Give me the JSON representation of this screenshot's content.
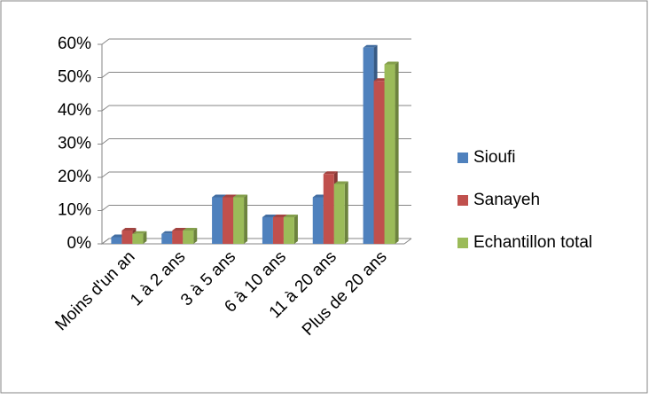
{
  "chart_data": {
    "type": "bar",
    "categories": [
      "Moins d'un an",
      "1 à 2 ans",
      "3 à 5 ans",
      "6 à 10 ans",
      "11 à 20 ans",
      "Plus de 20 ans"
    ],
    "series": [
      {
        "name": "Sioufi",
        "color": "#4f81bd",
        "values": [
          2,
          3,
          14,
          8,
          14,
          59
        ]
      },
      {
        "name": "Sanayeh",
        "color": "#c0504d",
        "values": [
          4,
          4,
          14,
          8,
          21,
          49
        ]
      },
      {
        "name": "Echantillon total",
        "color": "#9bbb59",
        "values": [
          3,
          4,
          14,
          8,
          18,
          54
        ]
      }
    ],
    "ylim": [
      0,
      60
    ],
    "yticks": [
      {
        "value": 0,
        "label": "0%"
      },
      {
        "value": 10,
        "label": "10%"
      },
      {
        "value": 20,
        "label": "20%"
      },
      {
        "value": 30,
        "label": "30%"
      },
      {
        "value": 40,
        "label": "40%"
      },
      {
        "value": 50,
        "label": "50%"
      },
      {
        "value": 60,
        "label": "60%"
      }
    ],
    "grid": true,
    "legend": "right"
  }
}
